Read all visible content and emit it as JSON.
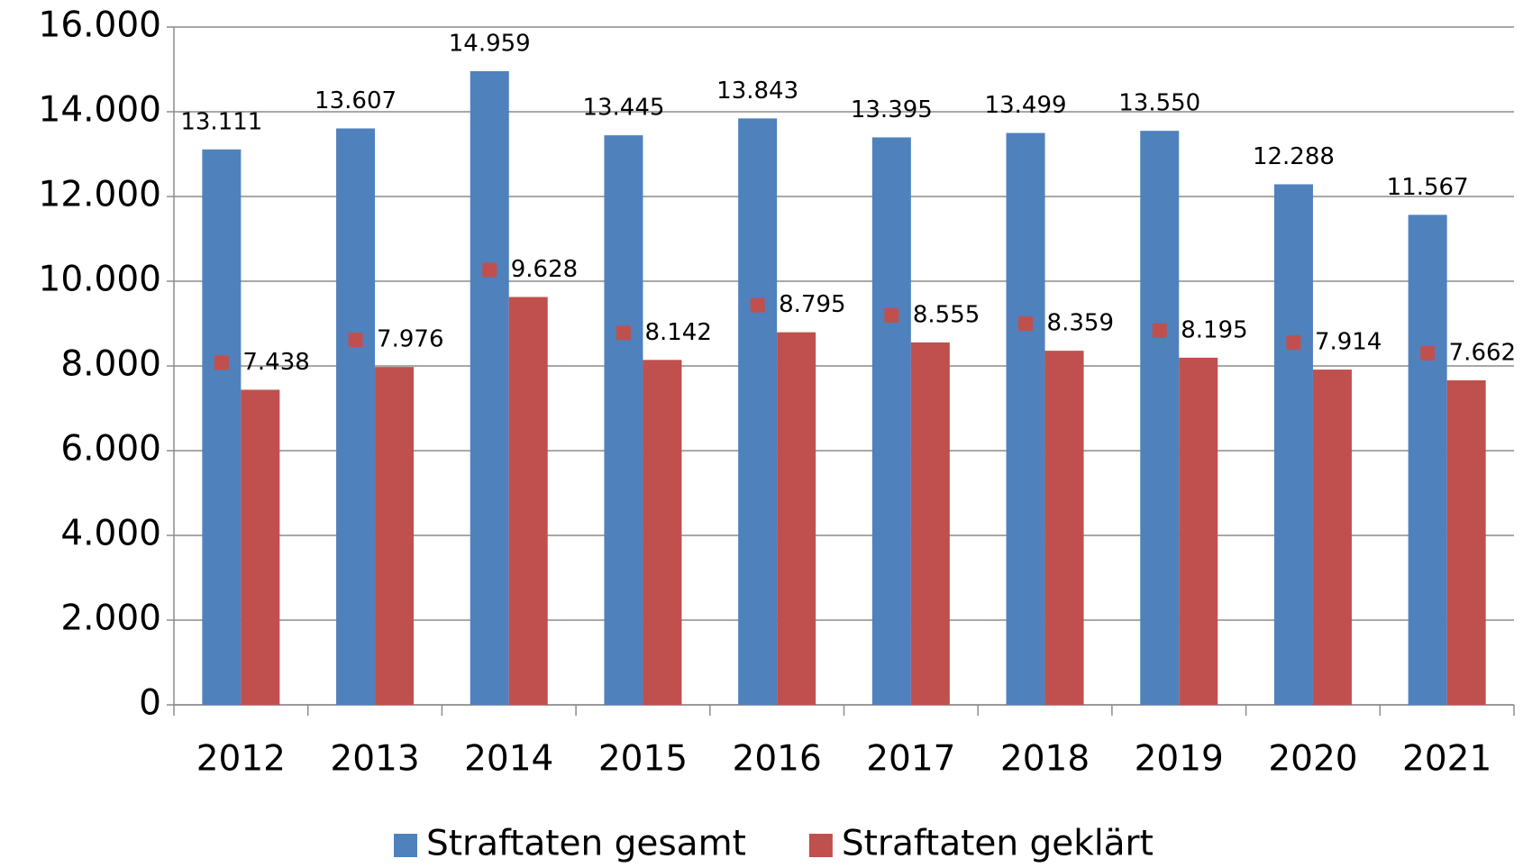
{
  "chart_data": {
    "type": "bar",
    "categories": [
      "2012",
      "2013",
      "2014",
      "2015",
      "2016",
      "2017",
      "2018",
      "2019",
      "2020",
      "2021"
    ],
    "series": [
      {
        "name": "Straftaten gesamt",
        "color": "#4f81bd",
        "values": [
          13111,
          13607,
          14959,
          13445,
          13843,
          13395,
          13499,
          13550,
          12288,
          11567
        ],
        "value_labels": [
          "13.111",
          "13.607",
          "14.959",
          "13.445",
          "13.843",
          "13.395",
          "13.499",
          "13.550",
          "12.288",
          "11.567"
        ]
      },
      {
        "name": "Straftaten geklärt",
        "color": "#c0504d",
        "values": [
          7438,
          7976,
          9628,
          8142,
          8795,
          8555,
          8359,
          8195,
          7914,
          7662
        ],
        "value_labels": [
          "7.438",
          "7.976",
          "9.628",
          "8.142",
          "8.795",
          "8.555",
          "8.359",
          "8.195",
          "7.914",
          "7.662"
        ]
      }
    ],
    "ylim": [
      0,
      16000
    ],
    "yticks": [
      0,
      {
        "value": 2000,
        "label": "2.000"
      },
      {
        "value": 4000,
        "label": "4.000"
      },
      {
        "value": 6000,
        "label": "6.000"
      },
      {
        "value": 8000,
        "label": "8.000"
      },
      {
        "value": 10000,
        "label": "10.000"
      },
      {
        "value": 12000,
        "label": "12.000"
      },
      {
        "value": 14000,
        "label": "14.000"
      },
      {
        "value": 16000,
        "label": "16.000"
      }
    ],
    "grid": true,
    "legend": "bottom"
  }
}
